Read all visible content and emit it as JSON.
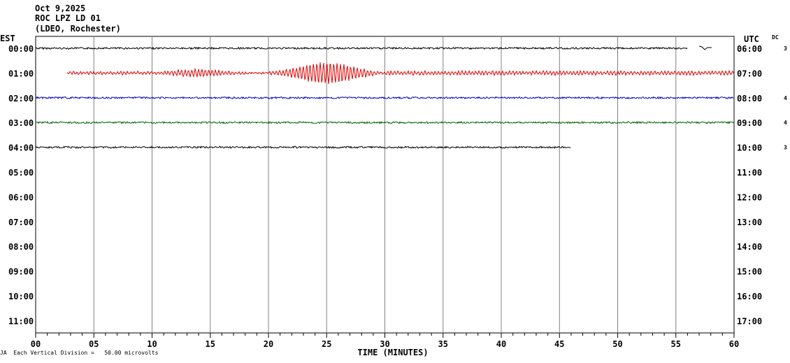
{
  "header": {
    "date": "Oct 9,2025",
    "station": "ROC LPZ LD 01",
    "network": "(LDEO, Rochester)"
  },
  "labels": {
    "left_timezone": "EST",
    "right_timezone": "UTC",
    "dc_header": "DC",
    "x_axis_title": "TIME (MINUTES)",
    "footnote_marker": "JA",
    "footnote": "Each Vertical Division =   50.00 microvolts"
  },
  "chart_data": {
    "type": "line",
    "title": "ROC LPZ LD 01",
    "xlabel": "TIME (MINUTES)",
    "xlim": [
      0,
      60
    ],
    "x_ticks": [
      "00",
      "05",
      "10",
      "15",
      "20",
      "25",
      "30",
      "35",
      "40",
      "45",
      "50",
      "55",
      "60"
    ],
    "rows_left": [
      "00:00",
      "01:00",
      "02:00",
      "03:00",
      "04:00",
      "05:00",
      "06:00",
      "07:00",
      "08:00",
      "09:00",
      "10:00",
      "11:00"
    ],
    "rows_right": [
      "06:00",
      "07:00",
      "08:00",
      "09:00",
      "10:00",
      "11:00",
      "12:00",
      "13:00",
      "14:00",
      "15:00",
      "16:00",
      "17:00"
    ],
    "vertical_division_microvolts": 50.0,
    "series": [
      {
        "row": 0,
        "color": "#000000",
        "start_min": 0,
        "end_min": 56,
        "dc": "3",
        "event": false
      },
      {
        "row": 1,
        "color": "#e00000",
        "start_min": 2.7,
        "end_min": 60,
        "dc": "",
        "event": true,
        "event_peak_min": 25
      },
      {
        "row": 2,
        "color": "#0000c8",
        "start_min": 0,
        "end_min": 60,
        "dc": "4",
        "event": false
      },
      {
        "row": 3,
        "color": "#006400",
        "start_min": 0,
        "end_min": 60,
        "dc": "4",
        "event": false
      },
      {
        "row": 4,
        "color": "#000000",
        "start_min": 0,
        "end_min": 46,
        "dc": "3",
        "event": false
      }
    ]
  }
}
